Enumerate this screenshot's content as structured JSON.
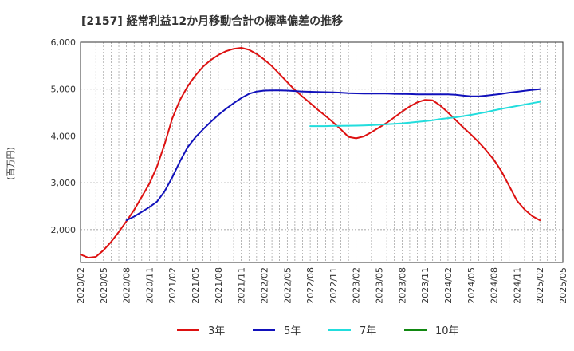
{
  "chart_data": {
    "type": "line",
    "title": "[2157]  経常利益12か月移動合計の標準偏差の推移",
    "ylabel": "(百万円)",
    "ylim": [
      1300,
      6000
    ],
    "yticks": [
      2000,
      3000,
      4000,
      5000,
      6000
    ],
    "ytick_labels": [
      "2,000",
      "3,000",
      "4,000",
      "5,000",
      "6,000"
    ],
    "xticks": [
      "2020/02",
      "2020/05",
      "2020/08",
      "2020/11",
      "2021/02",
      "2021/05",
      "2021/08",
      "2021/11",
      "2022/02",
      "2022/05",
      "2022/08",
      "2022/11",
      "2023/02",
      "2023/05",
      "2023/08",
      "2023/11",
      "2024/02",
      "2024/05",
      "2024/08",
      "2024/11",
      "2025/02",
      "2025/05"
    ],
    "xlim": [
      "2020/02",
      "2025/05"
    ],
    "grid": true,
    "legend_position": "bottom",
    "series": [
      {
        "name": "3年",
        "color": "#dd1111",
        "x": [
          "2020/02",
          "2020/03",
          "2020/04",
          "2020/05",
          "2020/06",
          "2020/07",
          "2020/08",
          "2020/09",
          "2020/10",
          "2020/11",
          "2020/12",
          "2021/01",
          "2021/02",
          "2021/03",
          "2021/04",
          "2021/05",
          "2021/06",
          "2021/07",
          "2021/08",
          "2021/09",
          "2021/10",
          "2021/11",
          "2021/12",
          "2022/01",
          "2022/02",
          "2022/03",
          "2022/04",
          "2022/05",
          "2022/06",
          "2022/07",
          "2022/08",
          "2022/09",
          "2022/10",
          "2022/11",
          "2022/12",
          "2023/01",
          "2023/02",
          "2023/03",
          "2023/04",
          "2023/05",
          "2023/06",
          "2023/07",
          "2023/08",
          "2023/09",
          "2023/10",
          "2023/11",
          "2023/12",
          "2024/01",
          "2024/02",
          "2024/03",
          "2024/04",
          "2024/05",
          "2024/06",
          "2024/07",
          "2024/08",
          "2024/09",
          "2024/10",
          "2024/11",
          "2024/12",
          "2025/01",
          "2025/02"
        ],
        "values": [
          1470,
          1400,
          1420,
          1560,
          1740,
          1950,
          2180,
          2420,
          2700,
          2980,
          3350,
          3830,
          4380,
          4770,
          5060,
          5290,
          5480,
          5620,
          5730,
          5810,
          5860,
          5880,
          5840,
          5750,
          5630,
          5490,
          5320,
          5150,
          4980,
          4840,
          4700,
          4560,
          4430,
          4290,
          4140,
          3980,
          3950,
          3990,
          4080,
          4180,
          4280,
          4400,
          4520,
          4630,
          4720,
          4770,
          4760,
          4650,
          4500,
          4340,
          4180,
          4030,
          3870,
          3690,
          3490,
          3240,
          2930,
          2620,
          2430,
          2290,
          2200
        ]
      },
      {
        "name": "5年",
        "color": "#1111bb",
        "x": [
          "2020/08",
          "2020/09",
          "2020/10",
          "2020/11",
          "2020/12",
          "2021/01",
          "2021/02",
          "2021/03",
          "2021/04",
          "2021/05",
          "2021/06",
          "2021/07",
          "2021/08",
          "2021/09",
          "2021/10",
          "2021/11",
          "2021/12",
          "2022/01",
          "2022/02",
          "2022/03",
          "2022/04",
          "2022/05",
          "2022/06",
          "2022/07",
          "2022/08",
          "2022/09",
          "2022/10",
          "2022/11",
          "2022/12",
          "2023/01",
          "2023/02",
          "2023/03",
          "2023/04",
          "2023/05",
          "2023/06",
          "2023/07",
          "2023/08",
          "2023/09",
          "2023/10",
          "2023/11",
          "2023/12",
          "2024/01",
          "2024/02",
          "2024/03",
          "2024/04",
          "2024/05",
          "2024/06",
          "2024/07",
          "2024/08",
          "2024/09",
          "2024/10",
          "2024/11",
          "2024/12",
          "2025/01",
          "2025/02"
        ],
        "values": [
          2200,
          2280,
          2380,
          2480,
          2600,
          2820,
          3120,
          3460,
          3760,
          3970,
          4140,
          4300,
          4450,
          4580,
          4700,
          4810,
          4900,
          4950,
          4970,
          4975,
          4975,
          4970,
          4960,
          4950,
          4945,
          4940,
          4935,
          4930,
          4925,
          4915,
          4910,
          4905,
          4905,
          4905,
          4905,
          4900,
          4898,
          4895,
          4890,
          4888,
          4888,
          4890,
          4890,
          4880,
          4860,
          4845,
          4845,
          4860,
          4880,
          4900,
          4925,
          4945,
          4965,
          4985,
          5000
        ]
      },
      {
        "name": "7年",
        "color": "#22dddd",
        "x": [
          "2022/08",
          "2022/09",
          "2022/10",
          "2022/11",
          "2022/12",
          "2023/01",
          "2023/02",
          "2023/03",
          "2023/04",
          "2023/05",
          "2023/06",
          "2023/07",
          "2023/08",
          "2023/09",
          "2023/10",
          "2023/11",
          "2023/12",
          "2024/01",
          "2024/02",
          "2024/03",
          "2024/04",
          "2024/05",
          "2024/06",
          "2024/07",
          "2024/08",
          "2024/09",
          "2024/10",
          "2024/11",
          "2024/12",
          "2025/01",
          "2025/02"
        ],
        "values": [
          4210,
          4210,
          4210,
          4215,
          4215,
          4218,
          4220,
          4225,
          4230,
          4240,
          4250,
          4260,
          4270,
          4285,
          4300,
          4315,
          4335,
          4360,
          4380,
          4400,
          4425,
          4450,
          4480,
          4510,
          4545,
          4580,
          4610,
          4640,
          4670,
          4700,
          4730
        ]
      },
      {
        "name": "10年",
        "color": "#118811",
        "x": [],
        "values": []
      }
    ]
  }
}
